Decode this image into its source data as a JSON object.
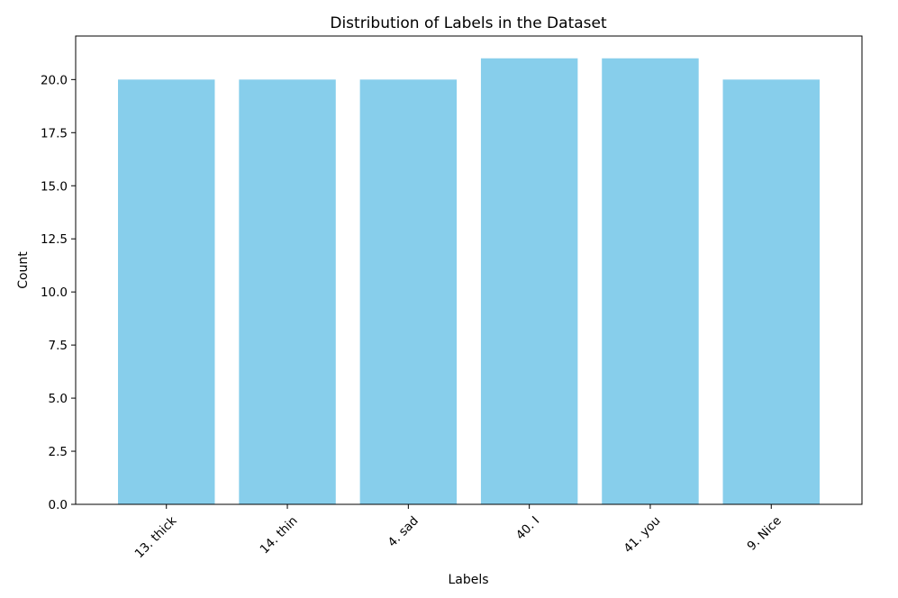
{
  "chart_data": {
    "type": "bar",
    "title": "Distribution of Labels in the Dataset",
    "xlabel": "Labels",
    "ylabel": "Count",
    "categories": [
      "13. thick",
      "14. thin",
      "4. sad",
      "40. I",
      "41. you",
      "9. Nice"
    ],
    "values": [
      20,
      20,
      20,
      21,
      21,
      20
    ],
    "ylim": [
      0,
      22.05
    ],
    "yticks": [
      0.0,
      2.5,
      5.0,
      7.5,
      10.0,
      12.5,
      15.0,
      17.5,
      20.0
    ],
    "ytick_labels": [
      "0.0",
      "2.5",
      "5.0",
      "7.5",
      "10.0",
      "12.5",
      "15.0",
      "17.5",
      "20.0"
    ],
    "x_tick_rotation_deg": 45,
    "bar_color": "#87ceeb",
    "grid": false,
    "legend": "none"
  }
}
